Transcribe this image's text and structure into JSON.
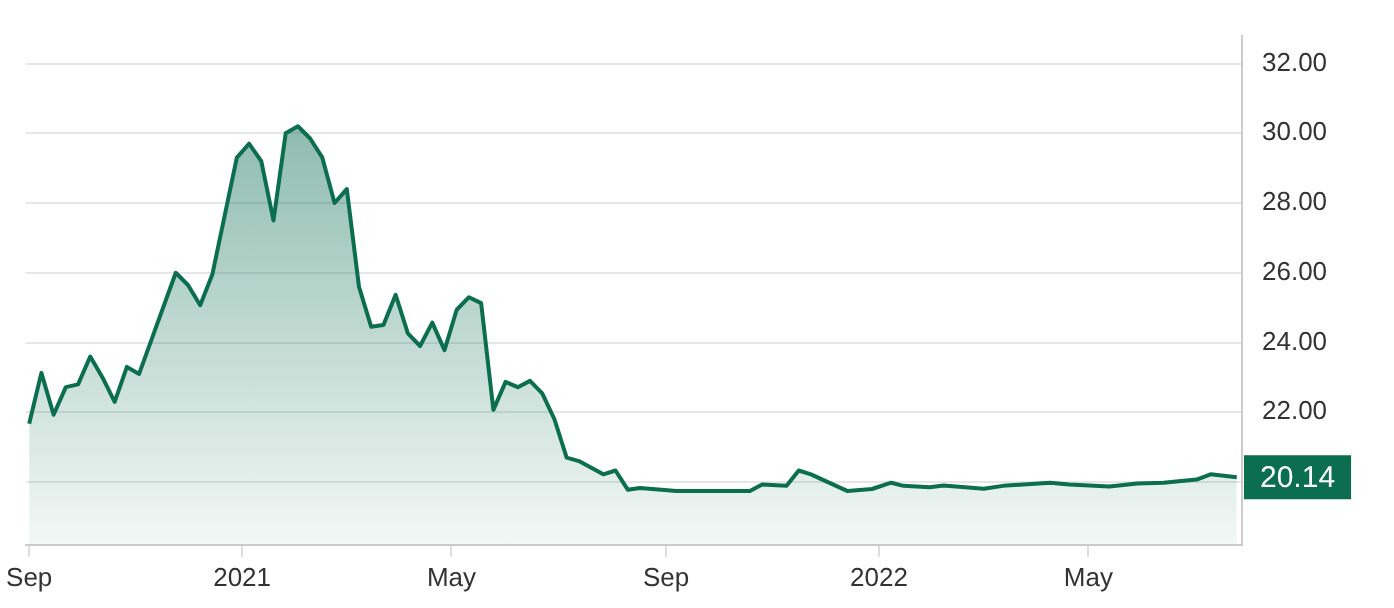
{
  "chart_data": {
    "type": "area",
    "color": "#0b6e4f",
    "x": [
      "2020-09-01",
      "2020-09-08",
      "2020-09-15",
      "2020-09-22",
      "2020-09-29",
      "2020-10-06",
      "2020-10-13",
      "2020-10-20",
      "2020-10-27",
      "2020-11-03",
      "2020-11-24",
      "2020-12-01",
      "2020-12-08",
      "2020-12-15",
      "2020-12-29",
      "2021-01-05",
      "2021-01-12",
      "2021-01-19",
      "2021-01-26",
      "2021-02-02",
      "2021-02-09",
      "2021-02-16",
      "2021-02-23",
      "2021-03-02",
      "2021-03-09",
      "2021-03-16",
      "2021-03-23",
      "2021-03-30",
      "2021-04-06",
      "2021-04-13",
      "2021-04-20",
      "2021-04-27",
      "2021-05-04",
      "2021-05-11",
      "2021-05-18",
      "2021-05-25",
      "2021-06-01",
      "2021-06-08",
      "2021-06-15",
      "2021-06-22",
      "2021-06-29",
      "2021-07-06",
      "2021-07-13",
      "2021-07-27",
      "2021-08-03",
      "2021-08-10",
      "2021-08-17",
      "2021-09-07",
      "2021-09-21",
      "2021-10-19",
      "2021-10-26",
      "2021-11-09",
      "2021-11-16",
      "2021-11-23",
      "2021-12-14",
      "2021-12-28",
      "2022-01-08",
      "2022-01-15",
      "2022-01-30",
      "2022-02-07",
      "2022-03-02",
      "2022-03-13",
      "2022-04-09",
      "2022-04-20",
      "2022-05-13",
      "2022-05-29",
      "2022-06-13",
      "2022-07-02",
      "2022-07-10",
      "2022-07-25"
    ],
    "values": [
      21.67,
      23.13,
      21.93,
      22.72,
      22.8,
      23.6,
      23.0,
      22.3,
      23.3,
      23.1,
      26.0,
      25.65,
      25.07,
      25.96,
      29.3,
      29.7,
      29.2,
      27.5,
      30.0,
      30.2,
      29.85,
      29.3,
      28.0,
      28.4,
      25.6,
      24.45,
      24.5,
      25.37,
      24.26,
      23.9,
      24.57,
      23.78,
      24.94,
      25.3,
      25.13,
      22.07,
      22.87,
      22.72,
      22.9,
      22.54,
      21.8,
      20.7,
      20.6,
      20.22,
      20.33,
      19.78,
      19.83,
      19.74,
      19.74,
      19.74,
      19.93,
      19.89,
      20.33,
      20.22,
      19.74,
      19.8,
      19.98,
      19.89,
      19.85,
      19.9,
      19.81,
      19.89,
      19.98,
      19.93,
      19.87,
      19.96,
      19.98,
      20.07,
      20.22,
      20.14
    ],
    "xlim": [
      "2020-08-30",
      "2022-07-28"
    ],
    "xticks": [
      {
        "value": "2020-09-01",
        "label": "Sep"
      },
      {
        "value": "2021-01-01",
        "label": "2021"
      },
      {
        "value": "2021-05-01",
        "label": "May"
      },
      {
        "value": "2021-09-01",
        "label": "Sep"
      },
      {
        "value": "2022-01-01",
        "label": "2022"
      },
      {
        "value": "2022-05-01",
        "label": "May"
      }
    ],
    "ylim": [
      18.2,
      32.8
    ],
    "yticks": [
      {
        "value": 20,
        "label": null
      },
      {
        "value": 22,
        "label": "22.00"
      },
      {
        "value": 24,
        "label": "24.00"
      },
      {
        "value": 26,
        "label": "26.00"
      },
      {
        "value": 28,
        "label": "28.00"
      },
      {
        "value": 30,
        "label": "30.00"
      },
      {
        "value": 32,
        "label": "32.00"
      }
    ],
    "grid": "y",
    "annotations": [
      "20.14"
    ]
  }
}
